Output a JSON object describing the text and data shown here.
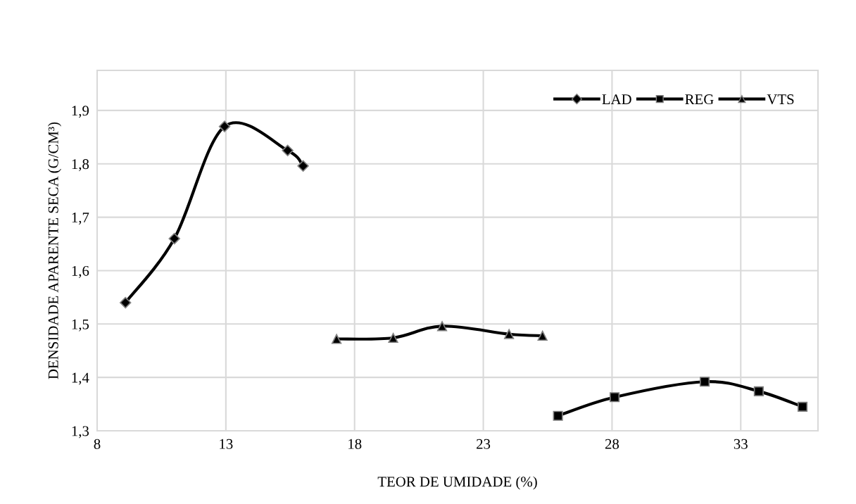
{
  "chart_data": {
    "type": "line",
    "xlabel": "TEOR DE UMIDADE (%)",
    "ylabel": "DENSIDADE APARENTE SECA (G/CM³)",
    "series": [
      {
        "name": "LAD",
        "color": "#000000",
        "marker": "diamond",
        "x": [
          9.1,
          11.0,
          12.95,
          15.4,
          16.0
        ],
        "values": [
          1.54,
          1.66,
          1.87,
          1.825,
          1.796
        ]
      },
      {
        "name": "REG",
        "color": "#000000",
        "marker": "square",
        "x": [
          25.9,
          28.1,
          31.6,
          33.7,
          35.4
        ],
        "values": [
          1.328,
          1.363,
          1.392,
          1.374,
          1.345
        ]
      },
      {
        "name": "VTS",
        "color": "#000000",
        "marker": "triangle",
        "x": [
          17.3,
          19.5,
          21.4,
          24.0,
          25.3
        ],
        "values": [
          1.472,
          1.474,
          1.496,
          1.481,
          1.478
        ]
      }
    ],
    "xlim": [
      8,
      36
    ],
    "xticks": [
      8,
      13,
      18,
      23,
      28,
      33
    ],
    "ylim": [
      1.3,
      1.975
    ],
    "yticks": [
      {
        "value": 1.3,
        "label": "1,3"
      },
      {
        "value": 1.4,
        "label": "1,4"
      },
      {
        "value": 1.5,
        "label": "1,5"
      },
      {
        "value": 1.6,
        "label": "1,6"
      },
      {
        "value": 1.7,
        "label": "1,7"
      },
      {
        "value": 1.8,
        "label": "1,8"
      },
      {
        "value": 1.9,
        "label": "1,9"
      }
    ],
    "grid": true,
    "legend": "top right",
    "line_style": "solid"
  }
}
